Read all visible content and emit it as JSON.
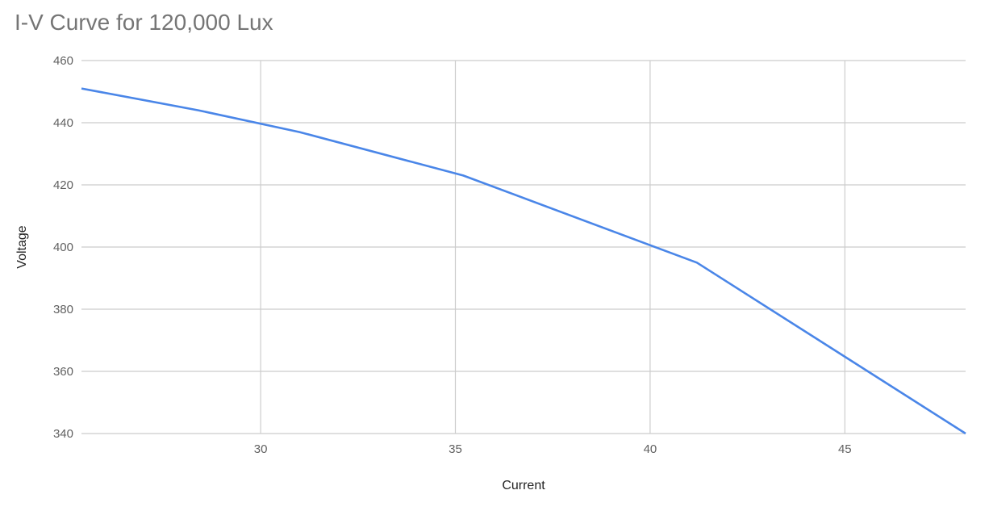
{
  "chart_data": {
    "type": "line",
    "title": "I-V Curve for 120,000 Lux",
    "xlabel": "Current",
    "ylabel": "Voltage",
    "xlim": [
      25.4,
      48.1
    ],
    "ylim": [
      340,
      460
    ],
    "xticks": [
      30,
      35,
      40,
      45
    ],
    "yticks": [
      340,
      360,
      380,
      400,
      420,
      440,
      460
    ],
    "grid": true,
    "legend": "none",
    "series": [
      {
        "color": "#4a86e8",
        "x": [
          25.4,
          28.4,
          31.0,
          35.2,
          41.2,
          48.1
        ],
        "y": [
          451,
          444,
          437,
          423,
          395,
          340
        ]
      }
    ]
  }
}
